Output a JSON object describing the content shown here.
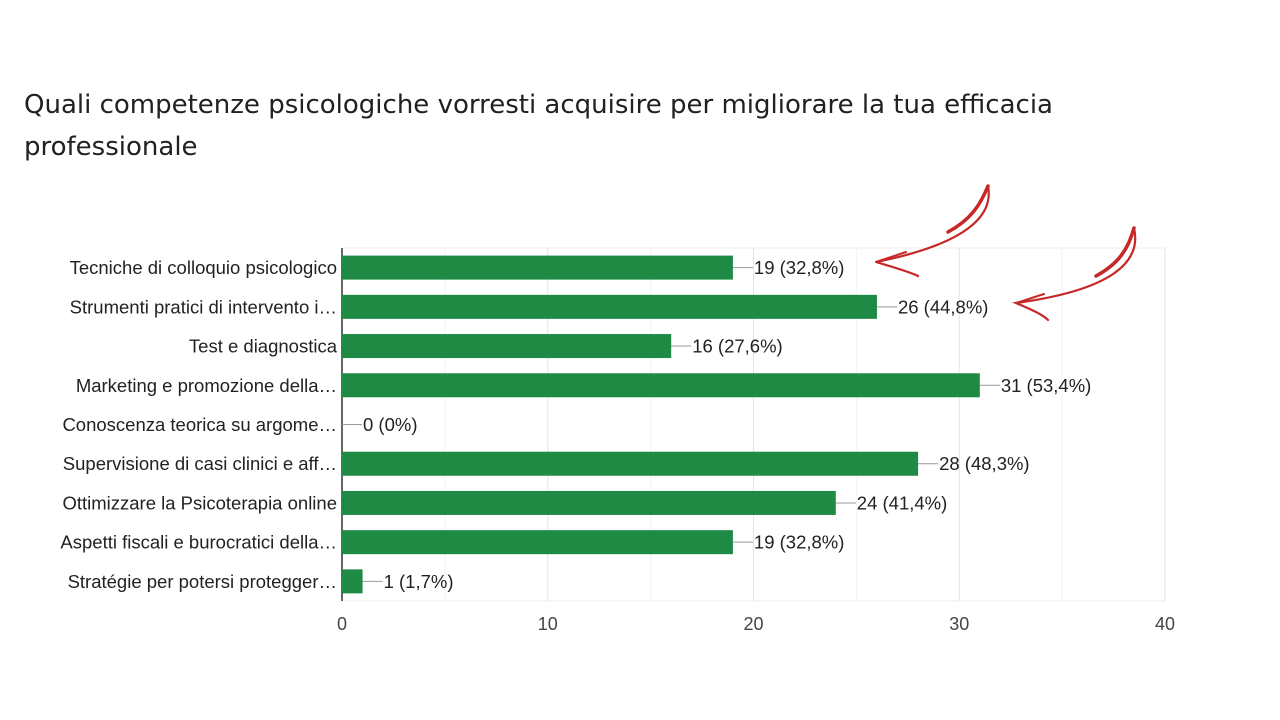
{
  "title": "Quali competenze psicologiche vorresti acquisire per migliorare la tua efficacia professionale",
  "chart_data": {
    "type": "bar",
    "orientation": "horizontal",
    "categories": [
      "Tecniche di colloquio psicologico",
      "Strumenti pratici di intervento i…",
      "Test e diagnostica",
      "Marketing e promozione della…",
      "Conoscenza teorica su argome…",
      "Supervisione di casi clinici e aff…",
      "Ottimizzare la Psicoterapia online",
      "Aspetti fiscali e burocratici della…",
      "Stratégie per potersi protegger…"
    ],
    "values": [
      19,
      26,
      16,
      31,
      0,
      28,
      24,
      19,
      1
    ],
    "value_labels": [
      "19 (32,8%)",
      "26 (44,8%)",
      "16 (27,6%)",
      "31 (53,4%)",
      "0 (0%)",
      "28 (48,3%)",
      "24 (41,4%)",
      "19 (32,8%)",
      "1 (1,7%)"
    ],
    "xlim": [
      0,
      40
    ],
    "xticks": [
      "0",
      "10",
      "20",
      "30",
      "40"
    ],
    "grid": true,
    "bar_color": "#1e8a44",
    "annotation_color": "#c62828",
    "annotations": "red hand-drawn arrows pointing at the first two value labels"
  }
}
